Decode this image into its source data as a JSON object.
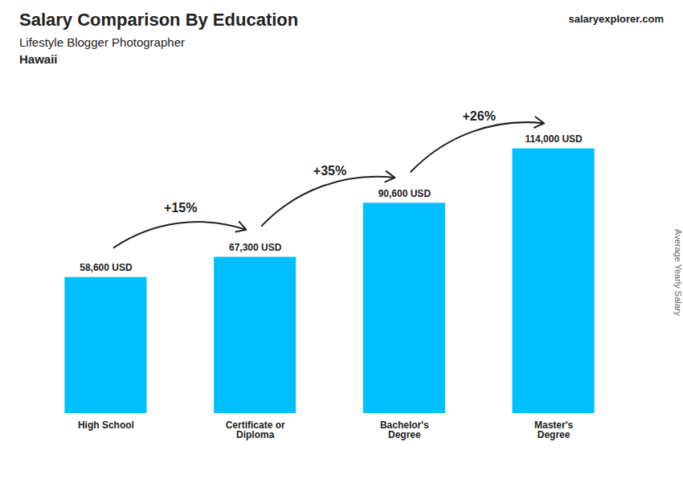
{
  "chart_data": {
    "type": "bar",
    "title": "Salary Comparison By Education",
    "subtitle": "Lifestyle Blogger Photographer",
    "annotations": [
      "Hawaii",
      "salary",
      "explorer",
      ".com"
    ],
    "ylabel": "Average Yearly Salary",
    "categories": [
      "High School",
      "Certificate or\nDiploma",
      "Bachelor's\nDegree",
      "Master's\nDegree"
    ],
    "values": [
      58600,
      67300,
      90600,
      114000
    ],
    "value_labels": [
      "58,600 USD",
      "67,300 USD",
      "90,600 USD",
      "114,000 USD"
    ],
    "data_labels": true,
    "changes": [
      15,
      35,
      26
    ],
    "change_labels": [
      "+15%",
      "+35%",
      "+26%"
    ],
    "color": "#00bfff",
    "ylim": [
      0,
      135000
    ],
    "grid": false,
    "tick_labels": "x"
  }
}
